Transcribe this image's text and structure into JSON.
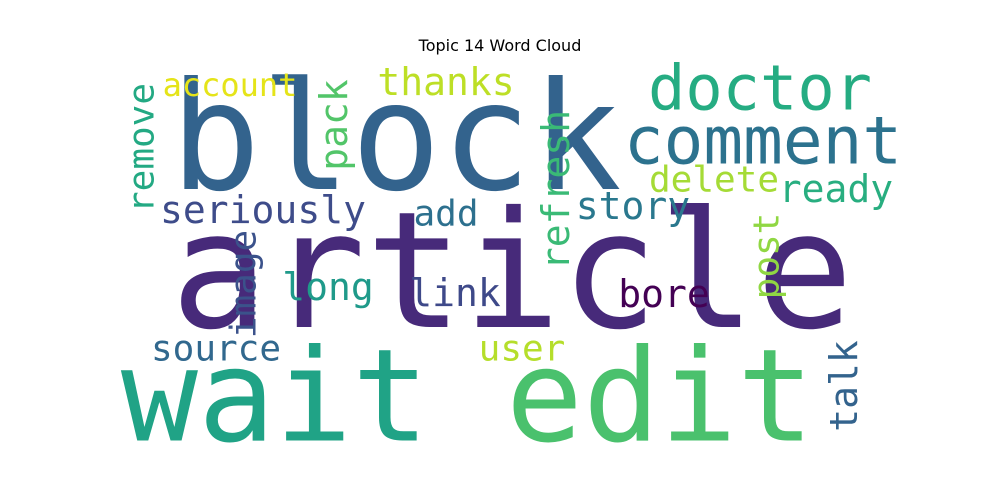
{
  "chart_data": {
    "type": "wordcloud",
    "title": "Topic 14 Word Cloud",
    "colormap": "viridis",
    "background": "#ffffff",
    "words": [
      {
        "text": "article",
        "weight": 1.0,
        "color": "#472a7a",
        "rotate": false
      },
      {
        "text": "block",
        "weight": 0.92,
        "color": "#33638d",
        "rotate": false
      },
      {
        "text": "wait",
        "weight": 0.78,
        "color": "#20a386",
        "rotate": false
      },
      {
        "text": "edit",
        "weight": 0.78,
        "color": "#4ac16d",
        "rotate": false
      },
      {
        "text": "comment",
        "weight": 0.4,
        "color": "#2c728e",
        "rotate": false
      },
      {
        "text": "doctor",
        "weight": 0.38,
        "color": "#25ac82",
        "rotate": false
      },
      {
        "text": "seriously",
        "weight": 0.24,
        "color": "#3e4c8a",
        "rotate": false
      },
      {
        "text": "remove",
        "weight": 0.22,
        "color": "#23a983",
        "rotate": true
      },
      {
        "text": "pack",
        "weight": 0.24,
        "color": "#52c569",
        "rotate": true
      },
      {
        "text": "thanks",
        "weight": 0.24,
        "color": "#bddf26",
        "rotate": false
      },
      {
        "text": "account",
        "weight": 0.2,
        "color": "#e5e419",
        "rotate": false
      },
      {
        "text": "refresh",
        "weight": 0.24,
        "color": "#3aba76",
        "rotate": true
      },
      {
        "text": "delete",
        "weight": 0.22,
        "color": "#a5db36",
        "rotate": false
      },
      {
        "text": "story",
        "weight": 0.24,
        "color": "#2a788e",
        "rotate": false
      },
      {
        "text": "ready",
        "weight": 0.23,
        "color": "#28ae80",
        "rotate": false
      },
      {
        "text": "add",
        "weight": 0.22,
        "color": "#2d708e",
        "rotate": false
      },
      {
        "text": "image",
        "weight": 0.22,
        "color": "#3b528b",
        "rotate": true
      },
      {
        "text": "long",
        "weight": 0.24,
        "color": "#1f9a8a",
        "rotate": false
      },
      {
        "text": "link",
        "weight": 0.24,
        "color": "#3e4989",
        "rotate": false
      },
      {
        "text": "post",
        "weight": 0.22,
        "color": "#90d743",
        "rotate": true
      },
      {
        "text": "bore",
        "weight": 0.24,
        "color": "#440154",
        "rotate": false
      },
      {
        "text": "source",
        "weight": 0.22,
        "color": "#31688e",
        "rotate": false
      },
      {
        "text": "user",
        "weight": 0.22,
        "color": "#b5de2b",
        "rotate": false
      },
      {
        "text": "talk",
        "weight": 0.24,
        "color": "#33638d",
        "rotate": true
      }
    ]
  }
}
